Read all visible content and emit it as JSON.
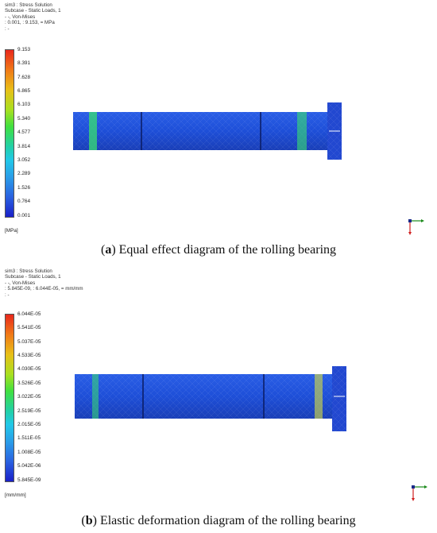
{
  "panels": [
    {
      "header": [
        "sim3 : Stress Solution",
        "Subcase - Static Loads, 1",
        " - -, Von-Mises",
        " : 0.001,  : 9.153,  = MPa",
        " : -"
      ],
      "legend_ticks": [
        "9.153",
        "8.391",
        "7.628",
        "6.865",
        "6.103",
        "5.340",
        "4.577",
        "3.814",
        "3.052",
        "2.289",
        "1.526",
        "0.764",
        "0.001"
      ],
      "unit": "[MPa]",
      "caption_letter": "a",
      "caption_text": " Equal effect diagram of the rolling bearing"
    },
    {
      "header": [
        "sim3 : Stress Solution",
        "Subcase - Static Loads, 1",
        " - -, Von-Mises",
        " : 5.845E-09,  : 6.044E-05,  = mm/mm",
        " : -"
      ],
      "legend_ticks": [
        "6.044E-05",
        "5.541E-05",
        "5.037E-05",
        "4.533E-05",
        "4.030E-05",
        "3.526E-05",
        "3.022E-05",
        "2.519E-05",
        "2.015E-05",
        "1.511E-05",
        "1.008E-05",
        "5.042E-06",
        "5.845E-09"
      ],
      "unit": "[mm/mm]",
      "caption_letter": "b",
      "caption_text": " Elastic deformation diagram of the rolling bearing"
    }
  ],
  "colors": {
    "legend_top": "#e8281c",
    "legend_mid": "#22d0e0",
    "legend_bottom": "#1a20c8",
    "shaft": "#1e4fd8",
    "hotspot": "#38e070"
  }
}
